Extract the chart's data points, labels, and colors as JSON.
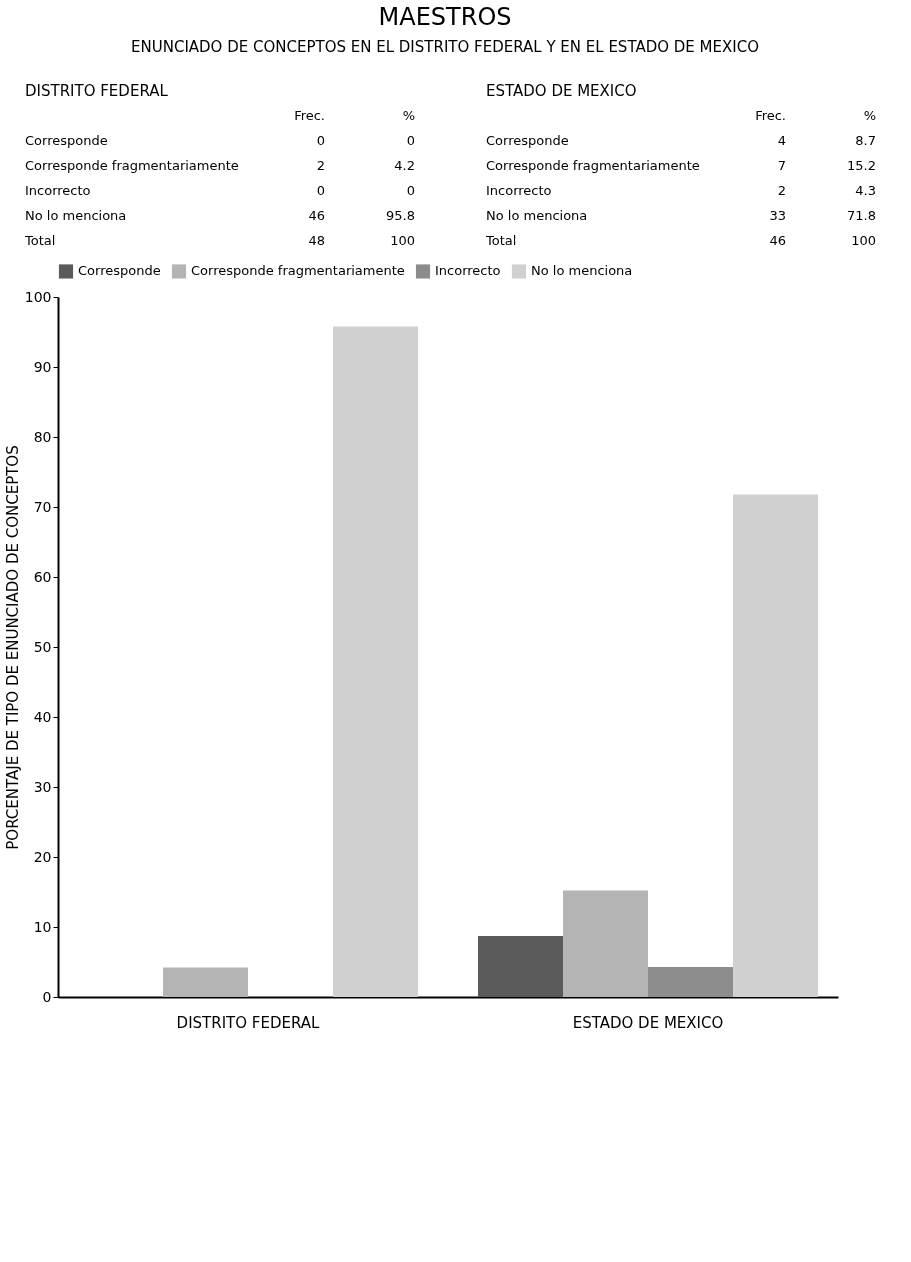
{
  "chart_data": [
    {
      "type": "other",
      "title": "MAESTROS",
      "subtitle": "ENUNCIADO DE CONCEPTOS EN EL DISTRITO FEDERAL Y EN EL ESTADO DE MEXICO"
    },
    {
      "type": "other",
      "title": "DISTRITO FEDERAL",
      "data_labels": true,
      "categories": [
        "Corresponde",
        "Corresponde fragmentariamente",
        "Incorrecto",
        "No lo menciona",
        "Total"
      ],
      "series": [
        {
          "name": "Frec.",
          "values": [
            0,
            2,
            0,
            46,
            48
          ]
        },
        {
          "name": "%",
          "values": [
            0,
            4.2,
            0,
            95.8,
            100
          ]
        }
      ]
    },
    {
      "type": "other",
      "title": "ESTADO DE MEXICO",
      "data_labels": true,
      "categories": [
        "Corresponde",
        "Corresponde fragmentariamente",
        "Incorrecto",
        "No lo menciona",
        "Total"
      ],
      "series": [
        {
          "name": "Frec.",
          "values": [
            4,
            7,
            2,
            33,
            46
          ]
        },
        {
          "name": "%",
          "values": [
            8.7,
            15.2,
            4.3,
            71.8,
            100
          ]
        }
      ]
    },
    {
      "type": "bar",
      "ylabel": "PORCENTAJE DE TIPO DE ENUNCIADO DE CONCEPTOS",
      "categories": [
        "DISTRITO FEDERAL",
        "ESTADO DE MEXICO"
      ],
      "ylim": [
        0,
        100
      ],
      "yticks": [
        0,
        10,
        20,
        30,
        40,
        50,
        60,
        70,
        80,
        90,
        100
      ],
      "grid": false,
      "legend": "top",
      "series": [
        {
          "name": "Corresponde",
          "color": "#5a5a5a",
          "values": [
            0,
            8.7
          ]
        },
        {
          "name": "Corresponde fragmentariamente",
          "color": "#b4b4b4",
          "values": [
            4.2,
            15.2
          ]
        },
        {
          "name": "Incorrecto",
          "color": "#8c8c8c",
          "values": [
            0,
            4.3
          ]
        },
        {
          "name": "No lo menciona",
          "color": "#d0d0d0",
          "values": [
            95.8,
            71.8
          ]
        }
      ]
    }
  ]
}
